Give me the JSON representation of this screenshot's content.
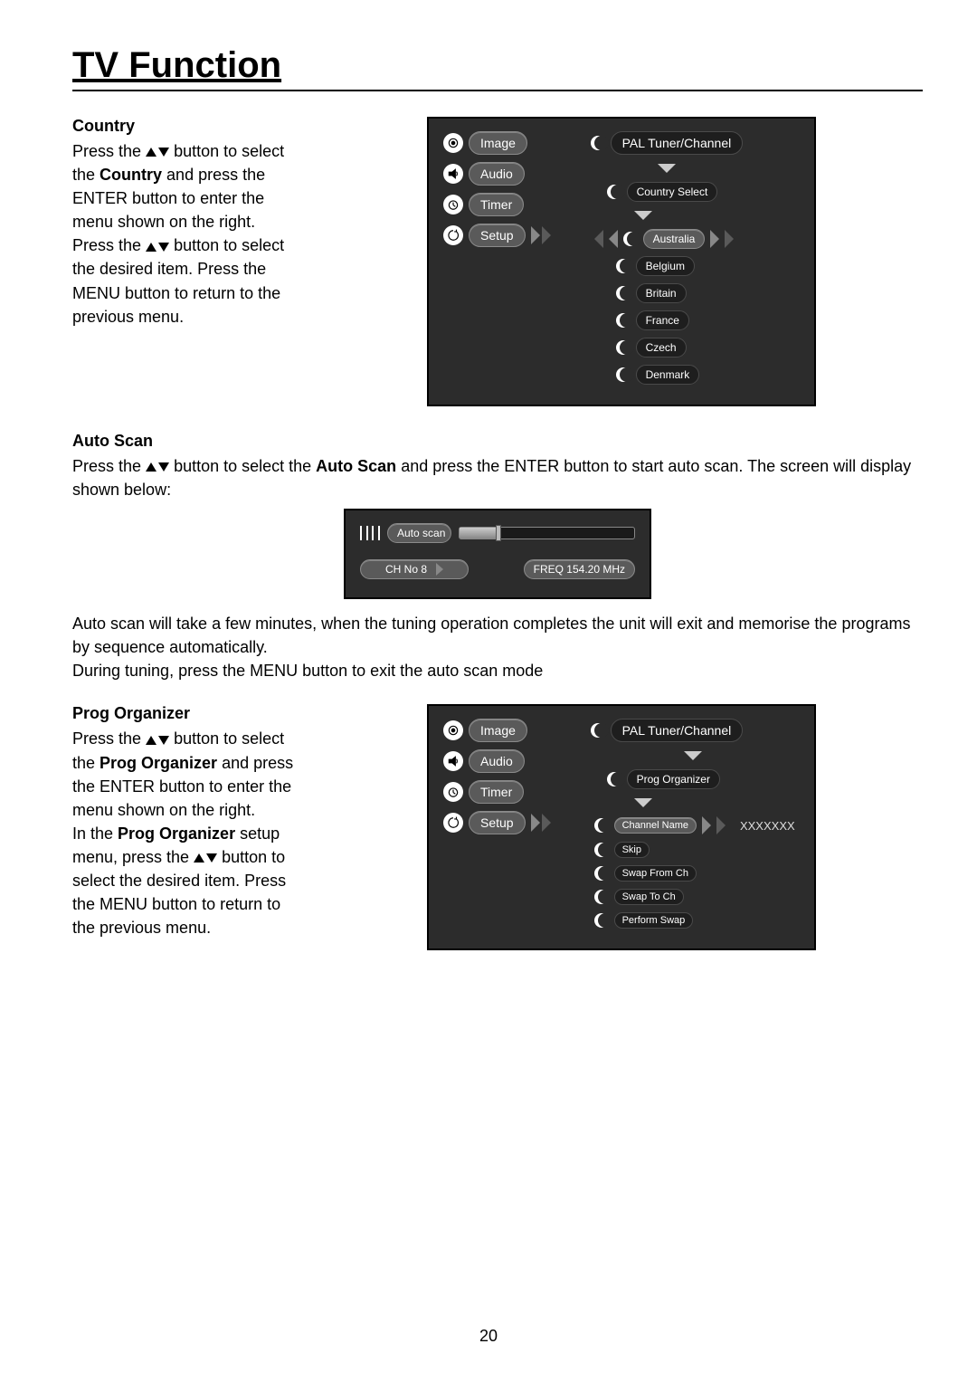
{
  "page": {
    "title": "TV Function",
    "number": "20"
  },
  "sections": {
    "country": {
      "heading": "Country",
      "text_before_icon": "Press the ",
      "text_after_icon_1": " button to select the ",
      "bold_1": "Country",
      "text_after_bold_1": " and press the ENTER button to enter the menu shown on the right. Press the ",
      "text_after_icon_2": " button to select the desired item. Press the MENU button to return to the previous menu."
    },
    "autoscan": {
      "heading": "Auto Scan",
      "text_before": "Press the ",
      "text_mid_1": " button to select the ",
      "bold_1": "Auto Scan",
      "text_after_bold": " and press the ENTER button to start auto scan. The screen will display shown below:",
      "text_after_fig": "Auto scan will take a few minutes, when the tuning operation completes the unit will exit and memorise the programs by sequence automatically.\nDuring tuning, press the MENU button to exit the auto scan mode"
    },
    "prog": {
      "heading": "Prog Organizer",
      "t1": "Press the ",
      "t2": " button to select the ",
      "bold_1": "Prog Organizer",
      "t3": " and press the ENTER button to enter the menu shown on the right.",
      "t4": "In the ",
      "bold_2": "Prog Organizer",
      "t5": " setup menu, press the ",
      "t6": " button to select the desired item. Press the MENU button to return to the previous menu."
    }
  },
  "figures": {
    "menu_left": {
      "items": [
        "Image",
        "Audio",
        "Timer",
        "Setup"
      ],
      "selected_index": 3
    },
    "country_fig": {
      "right_header": "PAL Tuner/Channel",
      "submenu_title": "Country Select",
      "countries": [
        "Australia",
        "Belgium",
        "Britain",
        "France",
        "Czech",
        "Denmark"
      ],
      "countries_selected_index": 0
    },
    "scan_fig": {
      "label": "Auto scan",
      "progress_pct": 22,
      "ch_label": "CH No   8",
      "freq_label": "FREQ 154.20 MHz"
    },
    "prog_fig": {
      "right_header": "PAL Tuner/Channel",
      "submenu_title": "Prog Organizer",
      "items": [
        "Channel Name",
        "Skip",
        "Swap From Ch",
        "Swap To Ch",
        "Perform Swap"
      ],
      "selected_index": 0,
      "selected_value": "XXXXXXX"
    }
  },
  "colors": {
    "page_bg": "#ffffff",
    "figure_bg": "#2c2c2c",
    "pill_grey": "#5a5a5a",
    "pill_dark": "#1e1e1e",
    "text": "#000000",
    "white": "#ffffff"
  }
}
